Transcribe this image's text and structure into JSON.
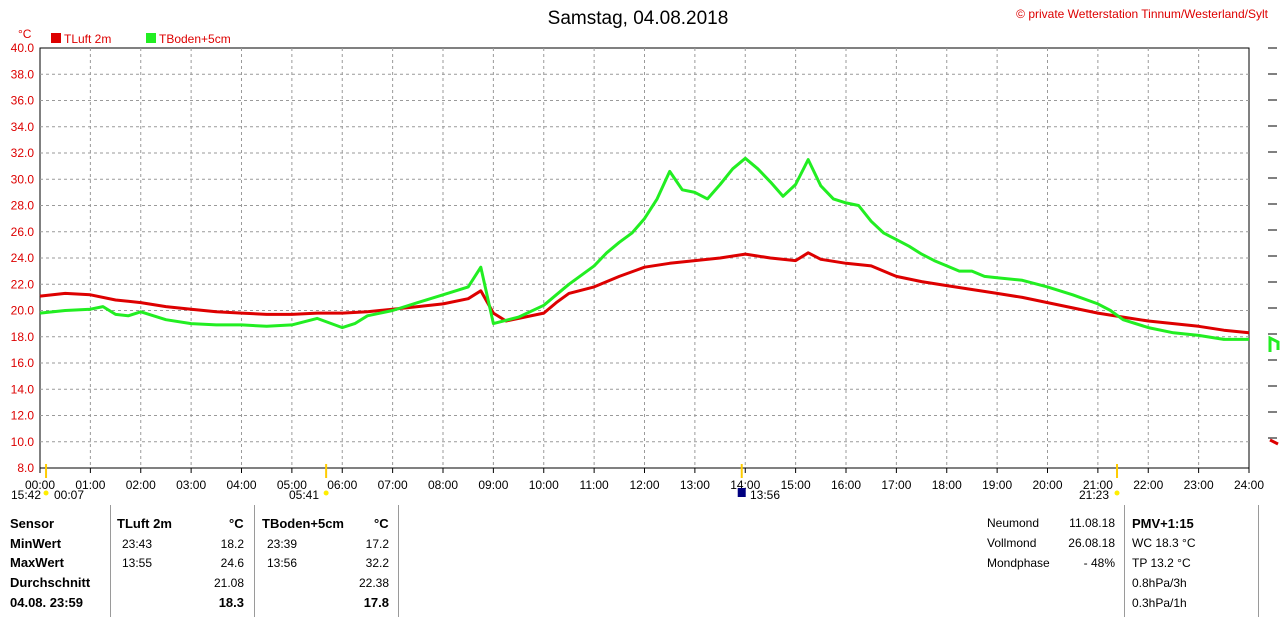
{
  "title": "Samstag, 04.08.2018",
  "copyright": "© private Wetterstation Tinnum/Westerland/Sylt",
  "y_unit": "°C",
  "legend": [
    {
      "label": "TLuft 2m",
      "color": "#dd0000"
    },
    {
      "label": "TBoden+5cm",
      "color": "#22ee22"
    }
  ],
  "chart_data": {
    "type": "line",
    "title": "Samstag, 04.08.2018",
    "ylabel": "°C",
    "xlim": [
      0,
      24
    ],
    "ylim": [
      8,
      40
    ],
    "grid": true,
    "legend_position": "top-left",
    "y_ticks": [
      "8.0",
      "10.0",
      "12.0",
      "14.0",
      "16.0",
      "18.0",
      "20.0",
      "22.0",
      "24.0",
      "26.0",
      "28.0",
      "30.0",
      "32.0",
      "34.0",
      "36.0",
      "38.0",
      "40.0"
    ],
    "x_ticks": [
      "00:00",
      "01:00",
      "02:00",
      "03:00",
      "04:00",
      "05:00",
      "06:00",
      "07:00",
      "08:00",
      "09:00",
      "10:00",
      "11:00",
      "12:00",
      "13:00",
      "14:00",
      "15:00",
      "16:00",
      "17:00",
      "18:00",
      "19:00",
      "20:00",
      "21:00",
      "22:00",
      "23:00",
      "24:00"
    ],
    "series": [
      {
        "name": "TLuft 2m",
        "color": "#dd0000",
        "x": [
          0,
          0.5,
          1,
          1.5,
          2,
          2.5,
          3,
          3.5,
          4,
          4.5,
          5,
          5.5,
          6,
          6.5,
          7,
          7.5,
          8,
          8.5,
          8.75,
          9,
          9.25,
          9.5,
          10,
          10.25,
          10.5,
          11,
          11.5,
          12,
          12.5,
          13,
          13.5,
          14,
          14.5,
          15,
          15.25,
          15.5,
          16,
          16.5,
          17,
          17.5,
          18,
          18.5,
          19,
          19.5,
          20,
          20.5,
          21,
          21.5,
          22,
          22.5,
          23,
          23.5,
          24
        ],
        "y": [
          21.1,
          21.3,
          21.2,
          20.8,
          20.6,
          20.3,
          20.1,
          19.9,
          19.8,
          19.7,
          19.7,
          19.8,
          19.8,
          19.9,
          20.1,
          20.3,
          20.5,
          20.9,
          21.5,
          19.8,
          19.2,
          19.4,
          19.8,
          20.6,
          21.3,
          21.8,
          22.6,
          23.3,
          23.6,
          23.8,
          24.0,
          24.3,
          24.0,
          23.8,
          24.4,
          23.9,
          23.6,
          23.4,
          22.6,
          22.2,
          21.9,
          21.6,
          21.3,
          21.0,
          20.6,
          20.2,
          19.8,
          19.5,
          19.2,
          19.0,
          18.8,
          18.5,
          18.3
        ]
      },
      {
        "name": "TBoden+5cm",
        "color": "#22ee22",
        "x": [
          0,
          0.5,
          1,
          1.25,
          1.5,
          1.75,
          2,
          2.5,
          3,
          3.5,
          4,
          4.5,
          5,
          5.5,
          6,
          6.25,
          6.5,
          7,
          7.5,
          8,
          8.5,
          8.75,
          9,
          9.5,
          10,
          10.25,
          10.5,
          11,
          11.25,
          11.5,
          11.75,
          12,
          12.25,
          12.5,
          12.75,
          13,
          13.25,
          13.5,
          13.75,
          14,
          14.25,
          14.5,
          14.75,
          15,
          15.25,
          15.5,
          15.75,
          16,
          16.25,
          16.5,
          16.75,
          17,
          17.25,
          17.5,
          17.75,
          18,
          18.25,
          18.5,
          18.75,
          19,
          19.5,
          20,
          20.5,
          21,
          21.25,
          21.5,
          22,
          22.5,
          23,
          23.5,
          24
        ],
        "y": [
          19.8,
          20.0,
          20.1,
          20.3,
          19.7,
          19.6,
          19.9,
          19.3,
          19.0,
          18.9,
          18.9,
          18.8,
          18.9,
          19.4,
          18.7,
          19.0,
          19.6,
          20.0,
          20.6,
          21.2,
          21.8,
          23.3,
          19.0,
          19.5,
          20.4,
          21.2,
          22.0,
          23.4,
          24.4,
          25.2,
          25.9,
          27.0,
          28.5,
          30.6,
          29.2,
          29.0,
          28.5,
          29.6,
          30.8,
          31.6,
          30.8,
          29.8,
          28.7,
          29.6,
          31.5,
          29.5,
          28.5,
          28.2,
          28.0,
          26.8,
          25.9,
          25.4,
          24.9,
          24.3,
          23.8,
          23.4,
          23.0,
          23.0,
          22.6,
          22.5,
          22.3,
          21.8,
          21.2,
          20.5,
          20.0,
          19.3,
          18.7,
          18.3,
          18.1,
          17.8,
          17.8
        ]
      }
    ]
  },
  "markers": {
    "bottom_left": "15:42",
    "sunrise_start": "00:07",
    "sunrise": "05:41",
    "sun_peak": "13:56",
    "sunset": "21:23"
  },
  "table": {
    "headers": {
      "sensor": "Sensor",
      "tluft": "TLuft 2m",
      "tluft_unit": "°C",
      "tboden": "TBoden+5cm",
      "tboden_unit": "°C"
    },
    "rows": [
      {
        "label": "MinWert",
        "t1_time": "23:43",
        "t1_val": "18.2",
        "t2_time": "23:39",
        "t2_val": "17.2"
      },
      {
        "label": "MaxWert",
        "t1_time": "13:55",
        "t1_val": "24.6",
        "t2_time": "13:56",
        "t2_val": "32.2"
      },
      {
        "label": "Durchschnitt",
        "t1_time": "",
        "t1_val": "21.08",
        "t2_time": "",
        "t2_val": "22.38"
      },
      {
        "label": "04.08. 23:59",
        "t1_time": "",
        "t1_val": "18.3",
        "t2_time": "",
        "t2_val": "17.8"
      }
    ],
    "moon": [
      {
        "label": "Neumond",
        "value": "11.08.18"
      },
      {
        "label": "Vollmond",
        "value": "26.08.18"
      },
      {
        "label": "Mondphase",
        "value": "- 48%"
      }
    ],
    "pmv": {
      "title": "PMV+1:15",
      "lines": [
        "WC 18.3 °C",
        "TP 13.2 °C",
        "0.8hPa/3h",
        "0.3hPa/1h"
      ]
    }
  }
}
